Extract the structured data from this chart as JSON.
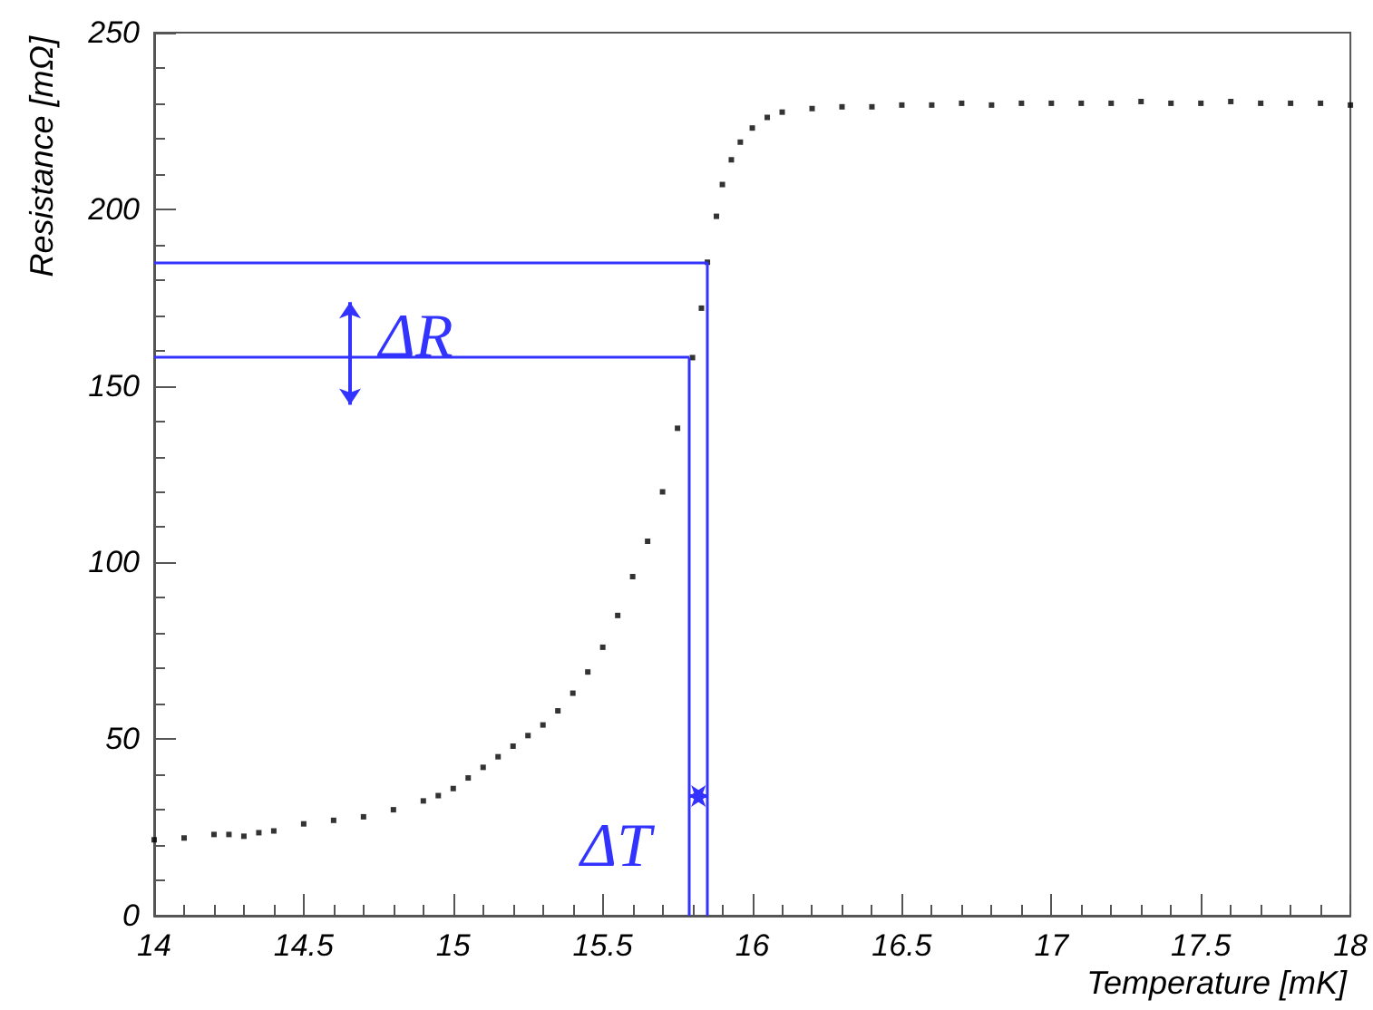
{
  "chart_data": {
    "type": "scatter",
    "xlabel": "Temperature [mK]",
    "ylabel": "Resistance [mΩ]",
    "xlim": [
      14,
      18
    ],
    "xticks": [
      14,
      14.5,
      15,
      15.5,
      16,
      16.5,
      17,
      17.5,
      18
    ],
    "ylim": [
      0,
      250
    ],
    "yticks": [
      0,
      50,
      100,
      150,
      200,
      250
    ],
    "grid": false,
    "marker": "square",
    "series": [
      {
        "color": "#000000",
        "x": [
          14.0,
          14.1,
          14.2,
          14.25,
          14.3,
          14.35,
          14.4,
          14.5,
          14.6,
          14.7,
          14.8,
          14.9,
          14.95,
          15.0,
          15.05,
          15.1,
          15.15,
          15.2,
          15.25,
          15.3,
          15.35,
          15.4,
          15.45,
          15.5,
          15.55,
          15.6,
          15.65,
          15.7,
          15.75,
          15.8,
          15.83,
          15.85,
          15.88,
          15.9,
          15.93,
          15.96,
          16.0,
          16.05,
          16.1,
          16.2,
          16.3,
          16.4,
          16.5,
          16.6,
          16.7,
          16.8,
          16.9,
          17.0,
          17.1,
          17.2,
          17.3,
          17.4,
          17.5,
          17.6,
          17.7,
          17.8,
          17.9,
          18.0
        ],
        "values": [
          21.5,
          22,
          23,
          23,
          22.5,
          23.5,
          24,
          26,
          27,
          28,
          30,
          32.5,
          34,
          36,
          39,
          42,
          45,
          48,
          51,
          54,
          58,
          63,
          69,
          76,
          85,
          96,
          106,
          120,
          138,
          158,
          172,
          185,
          198,
          207,
          214,
          219,
          223,
          226,
          227.5,
          228.5,
          229,
          229,
          229.5,
          229.5,
          230,
          229.5,
          230,
          230,
          230,
          230,
          230.5,
          230,
          230,
          230.5,
          230,
          230,
          230,
          229.5
        ]
      }
    ],
    "ref_lines": [
      {
        "axis": "y",
        "value": 185,
        "color": "#3333ff"
      },
      {
        "axis": "y",
        "value": 158,
        "color": "#3333ff"
      },
      {
        "axis": "x",
        "value": 15.85,
        "color": "#3333ff"
      },
      {
        "axis": "x",
        "value": 15.79,
        "color": "#3333ff"
      }
    ],
    "annotations": [
      "ΔR",
      "ΔT"
    ]
  }
}
